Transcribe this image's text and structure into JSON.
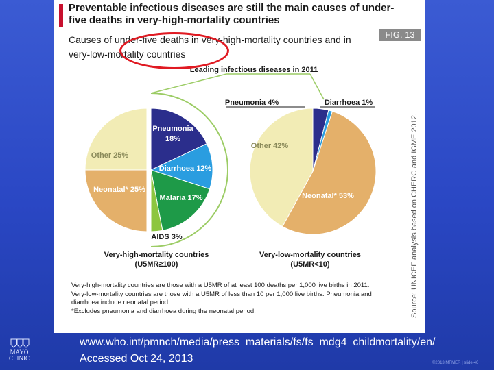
{
  "slide": {
    "header": "Preventable infectious diseases are still the main causes of under-five deaths in very-high-mortality countries",
    "subheader": "Causes of under-five deaths in very-high-mortality countries and in very-low-mortality countries",
    "fig_label": "FIG. 13",
    "source": "Source: UNICEF analysis based on CHERG and IGME 2012.",
    "notes": [
      "Very-high-mortality countries are those with a U5MR of at least 100 deaths per 1,000 live births in 2011.",
      "Very-low-mortality countries are those with a U5MR of less than 10 per 1,000 live births. Pneumonia and diarrhoea include neonatal period.",
      "*Excludes pneumonia and diarrhoea during the neonatal period."
    ],
    "footer_url": "www.who.int/pmnch/media/press_materials/fs/fs_mdg4_childmortality/en/",
    "footer_accessed": "Accessed Oct 24, 2013",
    "logo_text": "MAYO CLINIC",
    "copyright": "©2013 MFMER | slide-46"
  },
  "chart_data": [
    {
      "type": "pie",
      "title": "Very-high-mortality countries (U5MR≥100)",
      "group_label": "Leading infectious diseases in 2011",
      "slices": [
        {
          "label": "Pneumonia",
          "value": 18,
          "value_label": "18%",
          "color": "#2b2e8c"
        },
        {
          "label": "Diarrhoea",
          "value": 12,
          "value_label": "12%",
          "color": "#2a9de0"
        },
        {
          "label": "Malaria",
          "value": 17,
          "value_label": "17%",
          "color": "#1e9a48"
        },
        {
          "label": "AIDS",
          "value": 3,
          "value_label": "3%",
          "color": "#8dc63f"
        },
        {
          "label": "Neonatal*",
          "value": 25,
          "value_label": "25%",
          "color": "#e4b06a"
        },
        {
          "label": "Other",
          "value": 25,
          "value_label": "25%",
          "color": "#f2ecb5"
        }
      ]
    },
    {
      "type": "pie",
      "title": "Very-low-mortality countries (U5MR<10)",
      "slices": [
        {
          "label": "Pneumonia",
          "value": 4,
          "value_label": "4%",
          "color": "#2b2e8c"
        },
        {
          "label": "Diarrhoea",
          "value": 1,
          "value_label": "1%",
          "color": "#2a9de0"
        },
        {
          "label": "Neonatal*",
          "value": 53,
          "value_label": "53%",
          "color": "#e4b06a"
        },
        {
          "label": "Other",
          "value": 42,
          "value_label": "42%",
          "color": "#f2ecb5"
        }
      ]
    }
  ],
  "colors": {
    "background": "#2a47c4",
    "accent_red": "#c8102e",
    "annotation": "#e01a22",
    "connector": "#9ccc65"
  }
}
